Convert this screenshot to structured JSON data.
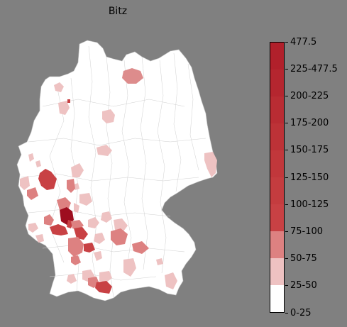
{
  "title": "Bitz",
  "colors": {
    "background": "#808080",
    "land": "#ffffff",
    "border": "#c8c8c8",
    "low": "#eab7b7",
    "mid": "#d36f6f",
    "mid2": "#c8353a",
    "high": "#b51f2b",
    "top": "#9c0a1e"
  },
  "legend": {
    "colors": [
      "#ffffff",
      "#eec2c2",
      "#dd8181",
      "#c84144",
      "#c43c3f",
      "#c1373b",
      "#bd3237",
      "#b92c33",
      "#b5262f",
      "#b1202b",
      "#9e0d1f"
    ],
    "labels": [
      "0-25",
      "25-50",
      "50-75",
      "75-100",
      "100-125",
      "125-150",
      "150-175",
      "175-200",
      "200-225",
      "225-477.5",
      "477.5"
    ]
  }
}
